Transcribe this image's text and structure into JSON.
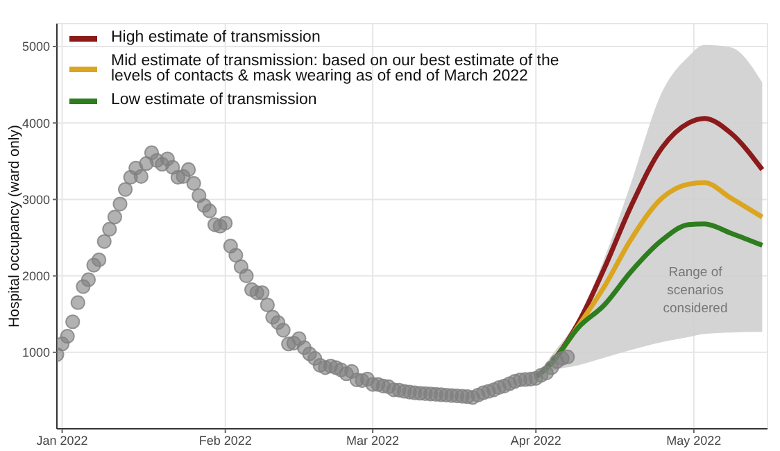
{
  "chart_data": {
    "type": "scatter",
    "ylabel": "Hospital occupancy (ward only)",
    "xlim": [
      "2021-12-31",
      "2022-05-15"
    ],
    "xticks": [
      {
        "value": "2022-01-01",
        "label": "Jan 2022"
      },
      {
        "value": "2022-02-01",
        "label": "Feb 2022"
      },
      {
        "value": "2022-03-01",
        "label": "Mar 2022"
      },
      {
        "value": "2022-04-01",
        "label": "Apr 2022"
      },
      {
        "value": "2022-05-01",
        "label": "May 2022"
      }
    ],
    "ylim": [
      0,
      5300
    ],
    "yticks": [
      1000,
      2000,
      3000,
      4000,
      5000
    ],
    "grid": true,
    "legend": "top left",
    "series": [
      {
        "color": "#7f7f7f",
        "marker": "circle",
        "x": [
          "2021-12-31",
          "2022-01-01",
          "2022-01-02",
          "2022-01-03",
          "2022-01-04",
          "2022-01-05",
          "2022-01-06",
          "2022-01-07",
          "2022-01-08",
          "2022-01-09",
          "2022-01-10",
          "2022-01-11",
          "2022-01-12",
          "2022-01-13",
          "2022-01-14",
          "2022-01-15",
          "2022-01-16",
          "2022-01-17",
          "2022-01-18",
          "2022-01-19",
          "2022-01-20",
          "2022-01-21",
          "2022-01-22",
          "2022-01-23",
          "2022-01-24",
          "2022-01-25",
          "2022-01-26",
          "2022-01-27",
          "2022-01-28",
          "2022-01-29",
          "2022-01-30",
          "2022-01-31",
          "2022-02-01",
          "2022-02-02",
          "2022-02-03",
          "2022-02-04",
          "2022-02-05",
          "2022-02-06",
          "2022-02-07",
          "2022-02-08",
          "2022-02-09",
          "2022-02-10",
          "2022-02-11",
          "2022-02-12",
          "2022-02-13",
          "2022-02-14",
          "2022-02-15",
          "2022-02-16",
          "2022-02-17",
          "2022-02-18",
          "2022-02-19",
          "2022-02-20",
          "2022-02-21",
          "2022-02-22",
          "2022-02-23",
          "2022-02-24",
          "2022-02-25",
          "2022-02-26",
          "2022-02-27",
          "2022-02-28",
          "2022-03-01",
          "2022-03-02",
          "2022-03-03",
          "2022-03-04",
          "2022-03-05",
          "2022-03-06",
          "2022-03-07",
          "2022-03-08",
          "2022-03-09",
          "2022-03-10",
          "2022-03-11",
          "2022-03-12",
          "2022-03-13",
          "2022-03-14",
          "2022-03-15",
          "2022-03-16",
          "2022-03-17",
          "2022-03-18",
          "2022-03-19",
          "2022-03-20",
          "2022-03-21",
          "2022-03-22",
          "2022-03-23",
          "2022-03-24",
          "2022-03-25",
          "2022-03-26",
          "2022-03-27",
          "2022-03-28",
          "2022-03-29",
          "2022-03-30",
          "2022-03-31",
          "2022-04-01",
          "2022-04-02",
          "2022-04-03",
          "2022-04-04",
          "2022-04-05",
          "2022-04-06",
          "2022-04-07"
        ],
        "values": [
          970,
          1110,
          1210,
          1400,
          1650,
          1860,
          1950,
          2140,
          2210,
          2450,
          2610,
          2770,
          2940,
          3130,
          3290,
          3410,
          3300,
          3470,
          3610,
          3510,
          3460,
          3530,
          3420,
          3290,
          3300,
          3390,
          3210,
          3050,
          2920,
          2850,
          2670,
          2650,
          2690,
          2390,
          2270,
          2120,
          2000,
          1820,
          1780,
          1780,
          1620,
          1460,
          1390,
          1290,
          1110,
          1120,
          1180,
          1060,
          980,
          920,
          830,
          800,
          820,
          800,
          770,
          720,
          750,
          640,
          630,
          650,
          580,
          580,
          560,
          550,
          510,
          505,
          490,
          480,
          470,
          465,
          460,
          455,
          450,
          445,
          440,
          435,
          430,
          425,
          420,
          410,
          440,
          470,
          490,
          510,
          540,
          560,
          590,
          620,
          640,
          645,
          650,
          660,
          700,
          730,
          800,
          880,
          920,
          940
        ]
      },
      {
        "type": "line",
        "name": "High estimate of transmission",
        "color": "#8b1a1a",
        "x": [
          "2022-04-01",
          "2022-04-04",
          "2022-04-09",
          "2022-04-14",
          "2022-04-19",
          "2022-04-25",
          "2022-04-30",
          "2022-05-03",
          "2022-05-08",
          "2022-05-14"
        ],
        "values": [
          680,
          870,
          1380,
          2100,
          2900,
          3680,
          4000,
          4060,
          3870,
          3390
        ]
      },
      {
        "type": "line",
        "name": "Mid estimate of transmission: based on our best estimate of the levels of contacts & mask wearing as of end of March 2022",
        "color": "#dba520",
        "x": [
          "2022-04-01",
          "2022-04-04",
          "2022-04-09",
          "2022-04-14",
          "2022-04-19",
          "2022-04-25",
          "2022-04-30",
          "2022-05-03",
          "2022-05-08",
          "2022-05-14"
        ],
        "values": [
          680,
          860,
          1340,
          1860,
          2470,
          3020,
          3200,
          3220,
          3020,
          2770
        ],
        "lower": [
          680,
          760,
          830,
          930,
          1030,
          1135,
          1200,
          1240,
          1260,
          1268
        ],
        "upper": [
          680,
          960,
          1440,
          2230,
          3200,
          4410,
          4870,
          5020,
          4990,
          4530
        ]
      },
      {
        "type": "line",
        "name": "Low estimate of transmission",
        "color": "#2e7d1e",
        "x": [
          "2022-04-01",
          "2022-04-04",
          "2022-04-09",
          "2022-04-14",
          "2022-04-19",
          "2022-04-25",
          "2022-04-30",
          "2022-05-03",
          "2022-05-08",
          "2022-05-14"
        ],
        "values": [
          680,
          860,
          1320,
          1620,
          2050,
          2470,
          2670,
          2680,
          2560,
          2400
        ]
      }
    ],
    "annotations": [
      "Range of scenarios considered"
    ]
  }
}
